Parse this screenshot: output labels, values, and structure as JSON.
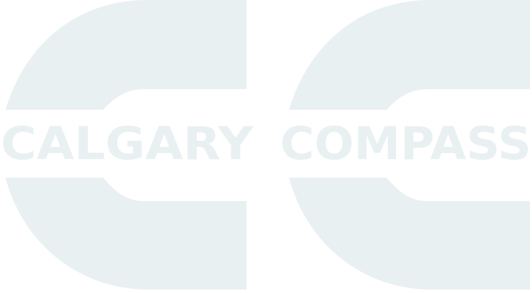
{
  "logo": {
    "word_left": "CALGARY",
    "word_right": "COMPASS",
    "mark_color": "#e9f0f2",
    "background_color": "#ffffff"
  }
}
